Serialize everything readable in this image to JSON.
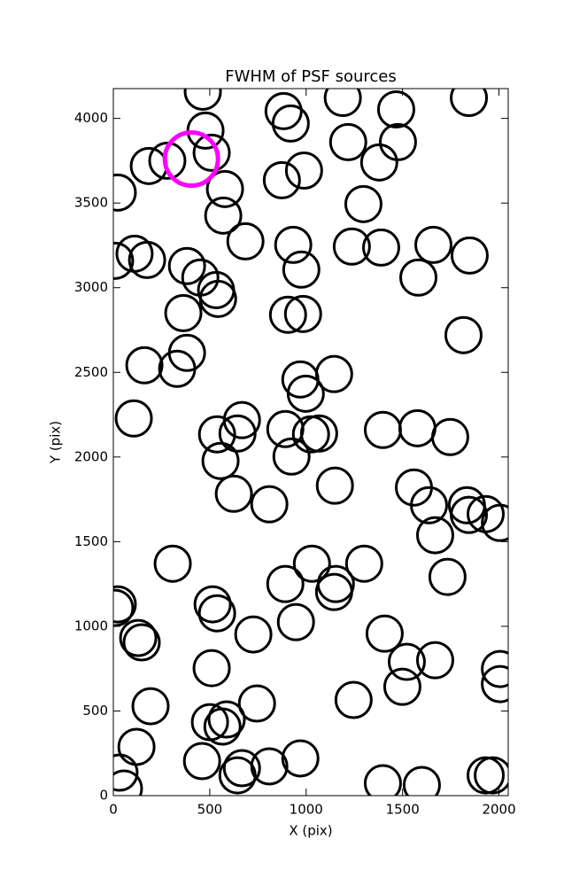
{
  "chart_data": {
    "type": "scatter",
    "title": "FWHM of PSF sources",
    "x_label": "X (pix)",
    "y_label": "Y (pix)",
    "xlim": [
      0,
      2048
    ],
    "ylim": [
      0,
      4176
    ],
    "xticks": [
      0,
      500,
      1000,
      1500,
      2000
    ],
    "yticks": [
      0,
      500,
      1000,
      1500,
      2000,
      2500,
      3000,
      3500,
      4000
    ],
    "series": [
      {
        "color": "#000000",
        "x": [
          464,
          478,
          510,
          184,
          280,
          23,
          579,
          570,
          685,
          883,
          920,
          989,
          874,
          1190,
          1467,
          1218,
          1476,
          1379,
          1297,
          1844,
          9,
          110,
          175,
          382,
          451,
          533,
          543,
          363,
          933,
          975,
          1237,
          1389,
          1660,
          1582,
          1848,
          906,
          984,
          1816,
          382,
          331,
          161,
          970,
          998,
          1145,
          106,
          667,
          644,
          538,
          556,
          892,
          1025,
          1067,
          924,
          1398,
          1577,
          1747,
          625,
          809,
          1149,
          1559,
          1637,
          1834,
          1844,
          1931,
          2005,
          1669,
          1733,
          308,
          1030,
          1301,
          892,
          1154,
          1145,
          23,
          9,
          515,
          538,
          129,
          147,
          726,
          947,
          1407,
          510,
          1522,
          1669,
          2005,
          2005,
          1499,
          193,
          745,
          1246,
          501,
          588,
          566,
          120,
          460,
          667,
          644,
          809,
          970,
          32,
          55,
          1398,
          1600,
          1931,
          1968
        ],
        "y": [
          4158,
          3928,
          3797,
          3719,
          3750,
          3562,
          3583,
          3426,
          3274,
          4043,
          3970,
          3692,
          3635,
          4121,
          4053,
          3860,
          3860,
          3740,
          3494,
          4121,
          3159,
          3201,
          3164,
          3128,
          3060,
          2986,
          2934,
          2850,
          3253,
          3107,
          3243,
          3237,
          3253,
          3060,
          3190,
          2840,
          2845,
          2720,
          2615,
          2521,
          2542,
          2458,
          2374,
          2490,
          2228,
          2218,
          2139,
          2134,
          1977,
          2165,
          2134,
          2139,
          2003,
          2160,
          2170,
          2118,
          1783,
          1721,
          1831,
          1820,
          1715,
          1715,
          1658,
          1663,
          1611,
          1538,
          1292,
          1370,
          1370,
          1370,
          1250,
          1250,
          1203,
          1130,
          1109,
          1130,
          1077,
          931,
          905,
          952,
          1025,
          957,
          753,
          790,
          800,
          748,
          659,
          643,
          528,
          544,
          565,
          434,
          450,
          408,
          288,
          204,
          162,
          120,
          173,
          220,
          136,
          42,
          73,
          63,
          120,
          120
        ]
      },
      {
        "color": "#ff00ff",
        "x": [
          405
        ],
        "y": [
          3760
        ]
      }
    ]
  }
}
